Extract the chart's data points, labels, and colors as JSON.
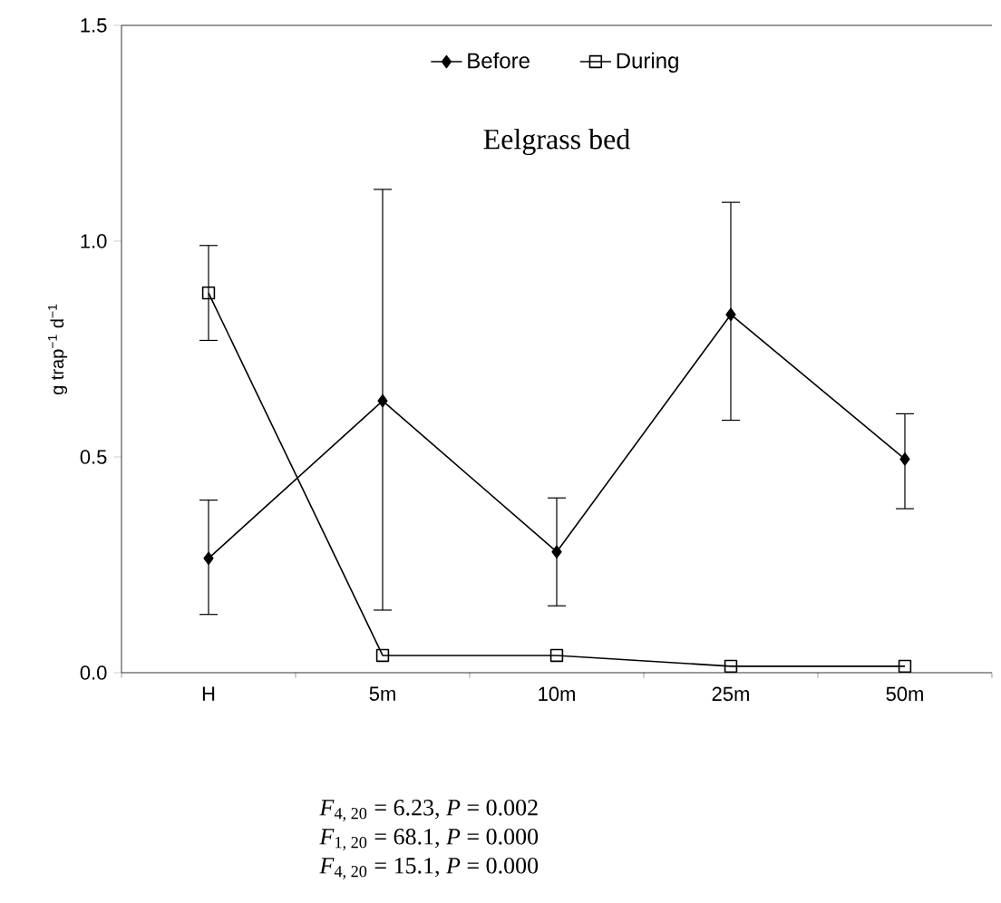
{
  "chart_data": {
    "type": "line",
    "title": "Eelgrass bed",
    "ylabel": "g trap$^{−1}$ d$^{−1}$",
    "categories": [
      "H",
      "5m",
      "10m",
      "25m",
      "50m"
    ],
    "series": [
      {
        "name": "Before",
        "color": "#000000",
        "marker": "diamond",
        "values": [
          0.265,
          0.63,
          0.28,
          0.83,
          0.495
        ],
        "errors": [
          [
            0.135,
            0.4
          ],
          [
            0.145,
            1.12
          ],
          [
            0.155,
            0.405
          ],
          [
            0.585,
            1.09
          ],
          [
            0.38,
            0.6
          ]
        ]
      },
      {
        "name": "During",
        "color": "#000000",
        "marker": "square",
        "values": [
          0.88,
          0.04,
          0.04,
          0.015,
          0.015
        ],
        "errors": [
          [
            0.77,
            0.99
          ],
          null,
          null,
          null,
          null
        ]
      }
    ],
    "ylim": [
      0,
      1.5
    ],
    "yticks": [
      {
        "value": 0,
        "label": "0.0"
      },
      {
        "value": 0.5,
        "label": "0.5"
      },
      {
        "value": 1.0,
        "label": "1.0"
      },
      {
        "value": 1.5,
        "label": "1.5"
      }
    ],
    "legend": "top",
    "grid": false,
    "annotations": [
      "*F*$_{4, 20}$ = 6.23,  *P* = 0.002",
      "*F*$_{1, 20}$ = 68.1,  *P* = 0.000",
      "*F*$_{4, 20}$ = 15.1,  *P* = 0.000"
    ]
  }
}
